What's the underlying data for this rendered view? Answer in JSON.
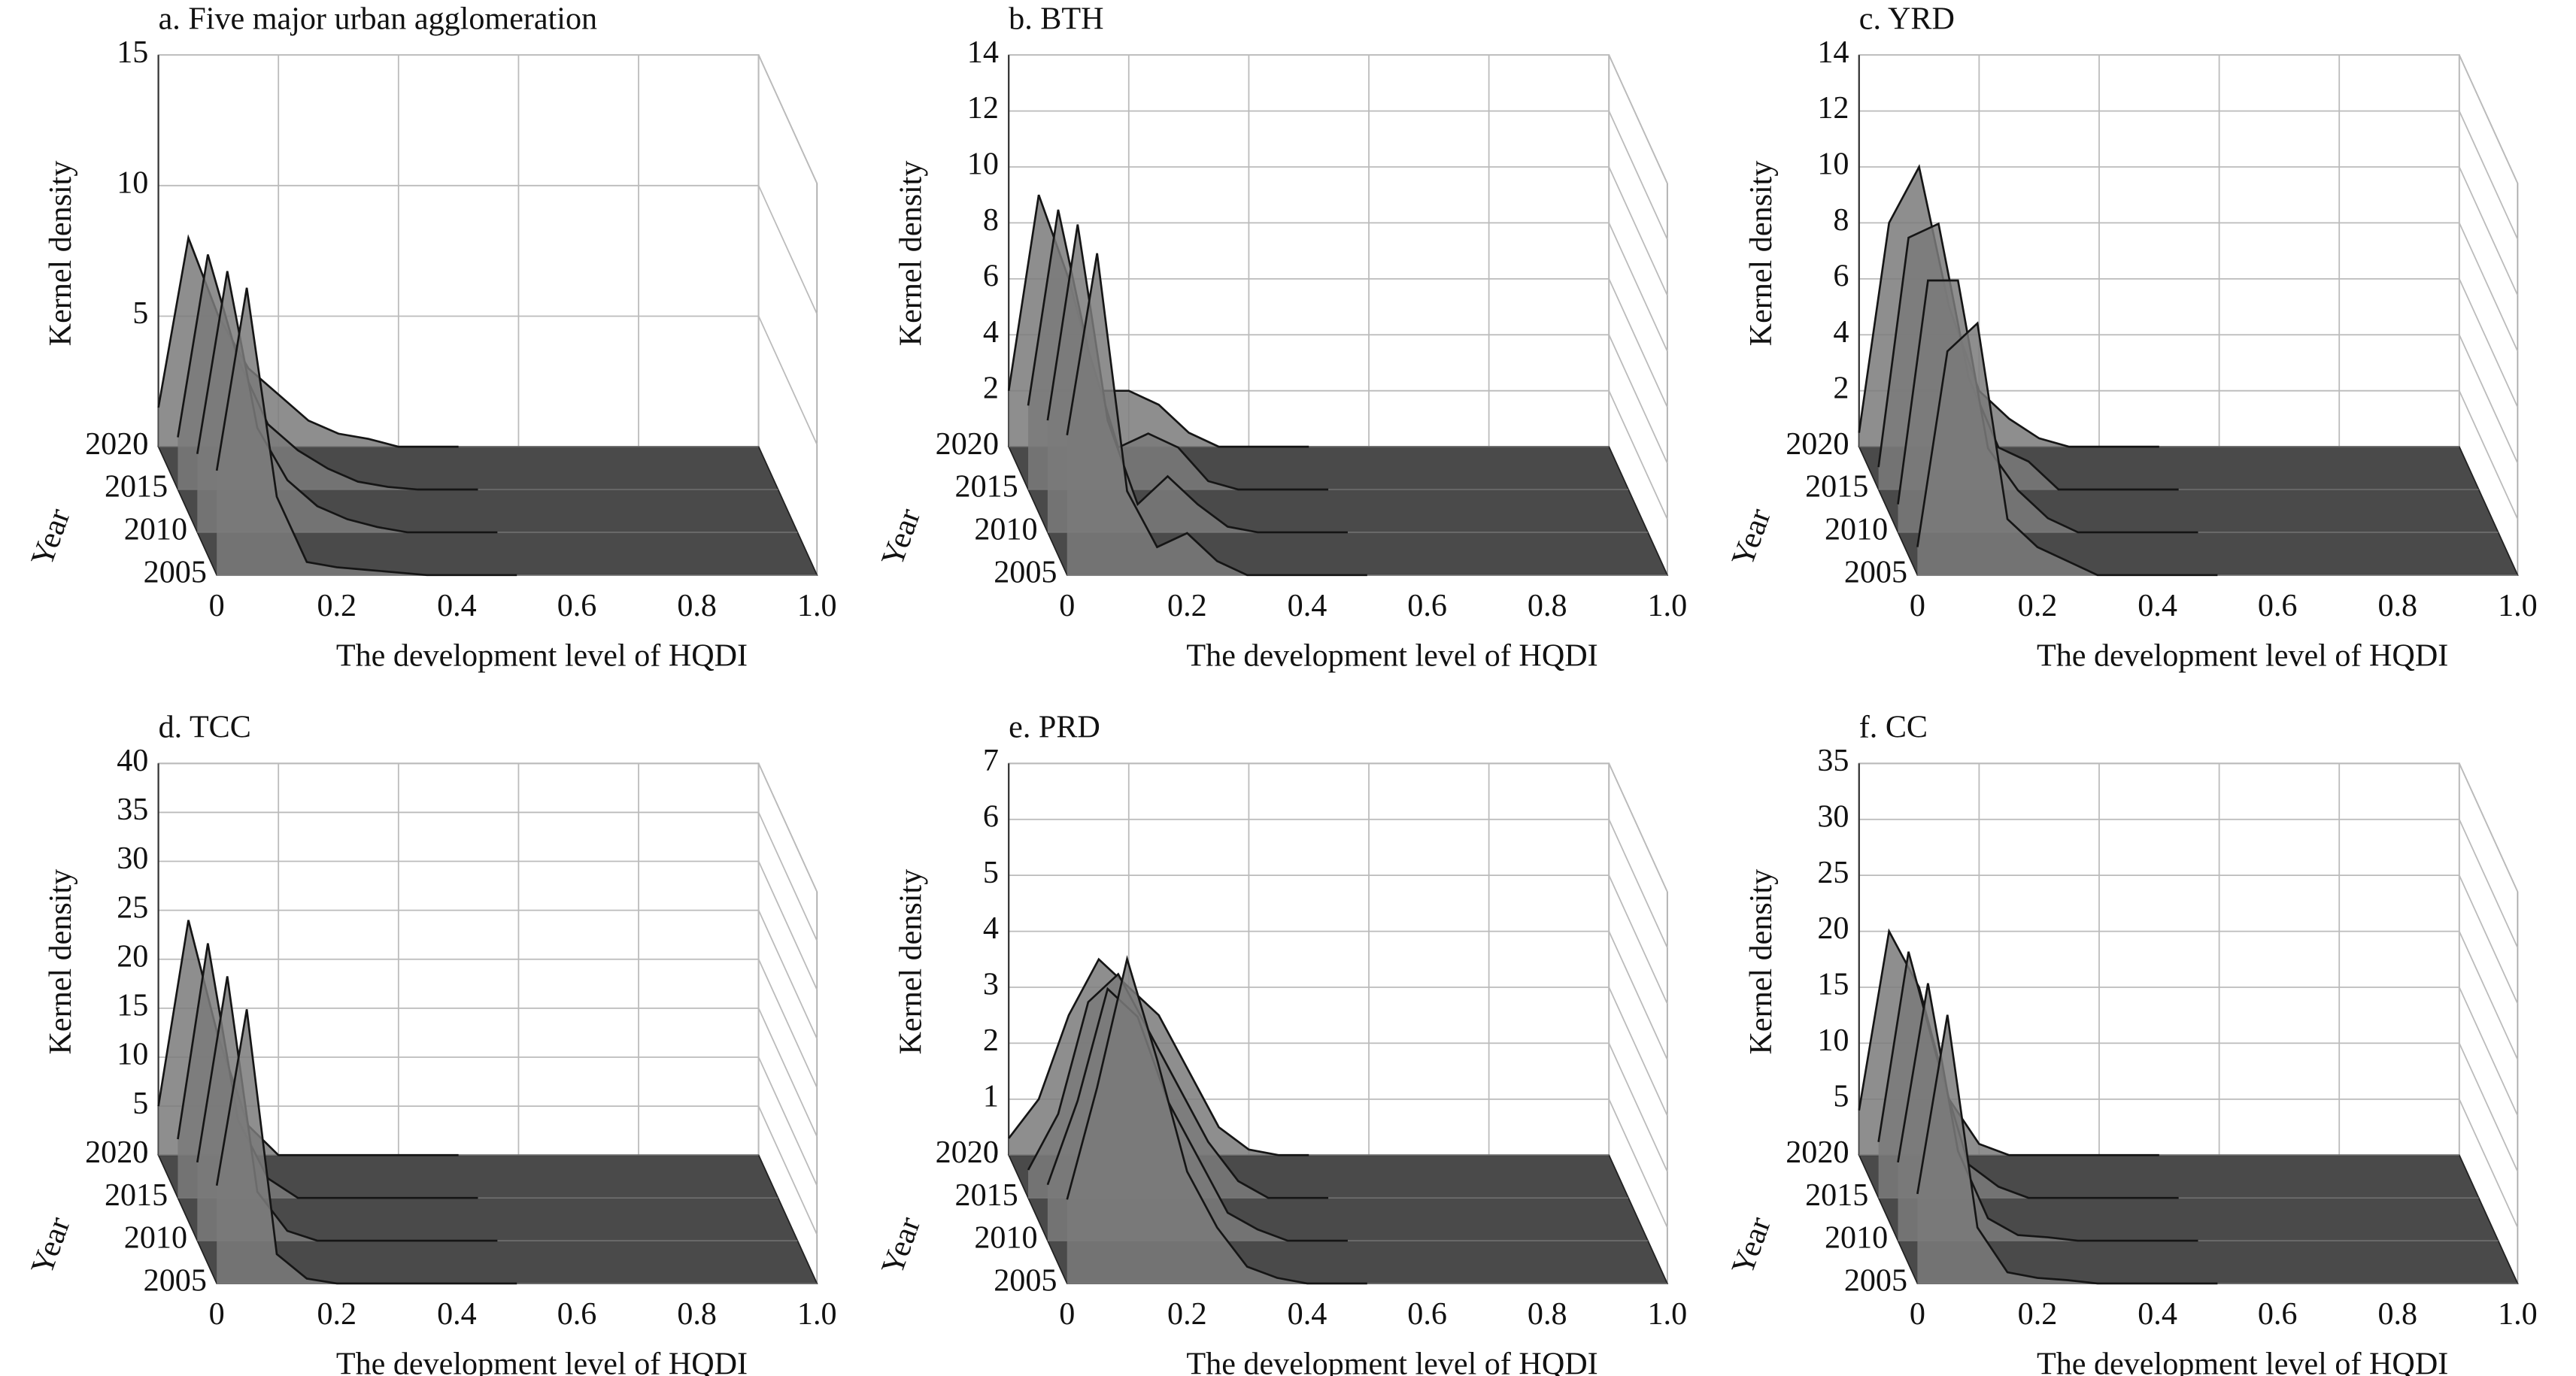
{
  "chart_data": [
    {
      "type": "surface3d",
      "title": "a. Five major urban agglomeration",
      "xlabel": "The development level of HQDI",
      "ylabel": "Year",
      "zlabel": "Kernel density",
      "x": [
        0,
        0.05,
        0.1,
        0.15,
        0.2,
        0.25,
        0.3,
        0.35,
        0.4,
        0.45,
        0.5
      ],
      "xlim": [
        0,
        1
      ],
      "xticks": [
        0,
        0.2,
        0.4,
        0.6,
        0.8,
        {
          "value": 1,
          "label": "1.0"
        }
      ],
      "ylim": [
        2005,
        2020
      ],
      "yticks": [
        2005,
        2010,
        2015,
        2020
      ],
      "zlim": [
        0,
        15
      ],
      "zticks": [
        0,
        5,
        10,
        15
      ],
      "series": [
        {
          "year": 2005,
          "color": "#151515",
          "values": [
            4,
            11,
            3,
            0.5,
            0.3,
            0.2,
            0.1,
            0,
            0,
            0,
            0
          ]
        },
        {
          "year": 2010,
          "color": "#151515",
          "values": [
            3,
            10,
            4,
            2,
            1,
            0.5,
            0.2,
            0,
            0,
            0,
            0
          ]
        },
        {
          "year": 2015,
          "color": "#151515",
          "values": [
            2,
            9,
            5,
            2.5,
            1.5,
            0.8,
            0.3,
            0.1,
            0,
            0,
            0
          ]
        },
        {
          "year": 2020,
          "color": "#151515",
          "values": [
            1.5,
            8,
            5,
            3,
            2,
            1,
            0.5,
            0.3,
            0,
            0,
            0
          ]
        }
      ]
    },
    {
      "type": "surface3d",
      "title": "b. BTH",
      "xlabel": "The development level of HQDI",
      "ylabel": "Year",
      "zlabel": "Kernel density",
      "x": [
        0,
        0.05,
        0.1,
        0.15,
        0.2,
        0.25,
        0.3,
        0.35,
        0.4,
        0.45,
        0.5
      ],
      "xlim": [
        0,
        1
      ],
      "xticks": [
        0,
        0.2,
        0.4,
        0.6,
        0.8,
        {
          "value": 1,
          "label": "1.0"
        }
      ],
      "ylim": [
        2005,
        2020
      ],
      "yticks": [
        2005,
        2010,
        2015,
        2020
      ],
      "zlim": [
        0,
        14
      ],
      "zticks": [
        0,
        2,
        4,
        6,
        8,
        10,
        12,
        14
      ],
      "series": [
        {
          "year": 2005,
          "color": "#151515",
          "values": [
            5,
            11.5,
            3,
            1,
            1.5,
            0.5,
            0,
            0,
            0,
            0,
            0
          ]
        },
        {
          "year": 2010,
          "color": "#151515",
          "values": [
            4,
            11,
            4,
            1,
            2,
            1,
            0.2,
            0,
            0,
            0,
            0
          ]
        },
        {
          "year": 2015,
          "color": "#151515",
          "values": [
            3,
            10,
            5,
            1.5,
            2,
            1.5,
            0.3,
            0,
            0,
            0,
            0
          ]
        },
        {
          "year": 2020,
          "color": "#151515",
          "values": [
            2,
            9,
            6,
            2,
            2,
            1.5,
            0.5,
            0,
            0,
            0,
            0
          ]
        }
      ]
    },
    {
      "type": "surface3d",
      "title": "c. YRD",
      "xlabel": "The development level of HQDI",
      "ylabel": "Year",
      "zlabel": "Kernel density",
      "x": [
        0,
        0.05,
        0.1,
        0.15,
        0.2,
        0.25,
        0.3,
        0.35,
        0.4,
        0.45,
        0.5
      ],
      "xlim": [
        0,
        1
      ],
      "xticks": [
        0,
        0.2,
        0.4,
        0.6,
        0.8,
        {
          "value": 1,
          "label": "1.0"
        }
      ],
      "ylim": [
        2005,
        2020
      ],
      "yticks": [
        2005,
        2010,
        2015,
        2020
      ],
      "zlim": [
        0,
        14
      ],
      "zticks": [
        0,
        2,
        4,
        6,
        8,
        10,
        12,
        14
      ],
      "series": [
        {
          "year": 2005,
          "color": "#151515",
          "values": [
            1,
            8,
            9,
            2,
            1,
            0.5,
            0,
            0,
            0,
            0,
            0
          ]
        },
        {
          "year": 2010,
          "color": "#151515",
          "values": [
            1,
            9,
            9,
            3,
            1.5,
            0.5,
            0,
            0,
            0,
            0,
            0
          ]
        },
        {
          "year": 2015,
          "color": "#151515",
          "values": [
            0.8,
            9,
            9.5,
            4,
            1.5,
            1,
            0,
            0,
            0,
            0,
            0
          ]
        },
        {
          "year": 2020,
          "color": "#151515",
          "values": [
            0.5,
            8,
            10,
            5,
            2,
            1,
            0.3,
            0,
            0,
            0,
            0
          ]
        }
      ]
    },
    {
      "type": "surface3d",
      "title": "d. TCC",
      "xlabel": "The development level of HQDI",
      "ylabel": "Year",
      "zlabel": "Kernel density",
      "x": [
        0,
        0.05,
        0.1,
        0.15,
        0.2,
        0.25,
        0.3,
        0.35,
        0.4,
        0.45,
        0.5
      ],
      "xlim": [
        0,
        1
      ],
      "xticks": [
        0,
        0.2,
        0.4,
        0.6,
        0.8,
        {
          "value": 1,
          "label": "1.0"
        }
      ],
      "ylim": [
        2005,
        2020
      ],
      "yticks": [
        2005,
        2010,
        2015,
        2020
      ],
      "zlim": [
        0,
        40
      ],
      "zticks": [
        0,
        5,
        10,
        15,
        20,
        25,
        30,
        35,
        40
      ],
      "series": [
        {
          "year": 2005,
          "color": "#151515",
          "values": [
            10,
            28,
            3,
            0.5,
            0,
            0,
            0,
            0,
            0,
            0,
            0
          ]
        },
        {
          "year": 2010,
          "color": "#151515",
          "values": [
            8,
            27,
            5,
            1,
            0,
            0,
            0,
            0,
            0,
            0,
            0
          ]
        },
        {
          "year": 2015,
          "color": "#151515",
          "values": [
            6,
            26,
            8,
            2,
            0,
            0,
            0,
            0,
            0,
            0,
            0
          ]
        },
        {
          "year": 2020,
          "color": "#151515",
          "values": [
            5,
            24,
            12,
            3,
            0,
            0,
            0,
            0,
            0,
            0,
            0
          ]
        }
      ]
    },
    {
      "type": "surface3d",
      "title": "e. PRD",
      "xlabel": "The development level of HQDI",
      "ylabel": "Year",
      "zlabel": "Kernel density",
      "x": [
        0,
        0.05,
        0.1,
        0.15,
        0.2,
        0.25,
        0.3,
        0.35,
        0.4,
        0.45,
        0.5
      ],
      "xlim": [
        0,
        1
      ],
      "xticks": [
        0,
        0.2,
        0.4,
        0.6,
        0.8,
        {
          "value": 1,
          "label": "1.0"
        }
      ],
      "ylim": [
        2005,
        2020
      ],
      "yticks": [
        2005,
        2010,
        2015,
        2020
      ],
      "zlim": [
        0,
        7
      ],
      "zticks": [
        0,
        1,
        2,
        3,
        4,
        5,
        6,
        7
      ],
      "series": [
        {
          "year": 2005,
          "color": "#151515",
          "values": [
            1.5,
            3.5,
            5.8,
            4,
            2,
            1,
            0.3,
            0.1,
            0,
            0,
            0
          ]
        },
        {
          "year": 2010,
          "color": "#151515",
          "values": [
            1,
            2.5,
            4.5,
            4,
            2.5,
            1.5,
            0.5,
            0.2,
            0,
            0,
            0
          ]
        },
        {
          "year": 2015,
          "color": "#151515",
          "values": [
            0.5,
            1.5,
            3.5,
            4,
            3,
            2,
            1,
            0.3,
            0,
            0,
            0
          ]
        },
        {
          "year": 2020,
          "color": "#151515",
          "values": [
            0.3,
            1,
            2.5,
            3.5,
            3,
            2.5,
            1.5,
            0.5,
            0.1,
            0,
            0
          ]
        }
      ]
    },
    {
      "type": "surface3d",
      "title": "f. CC",
      "xlabel": "The development level of HQDI",
      "ylabel": "Year",
      "zlabel": "Kernel density",
      "x": [
        0,
        0.05,
        0.1,
        0.15,
        0.2,
        0.25,
        0.3,
        0.35,
        0.4,
        0.45,
        0.5
      ],
      "xlim": [
        0,
        1
      ],
      "xticks": [
        0,
        0.2,
        0.4,
        0.6,
        0.8,
        {
          "value": 1,
          "label": "1.0"
        }
      ],
      "ylim": [
        2005,
        2020
      ],
      "yticks": [
        2005,
        2010,
        2015,
        2020
      ],
      "zlim": [
        0,
        35
      ],
      "zticks": [
        0,
        5,
        10,
        15,
        20,
        25,
        30,
        35
      ],
      "series": [
        {
          "year": 2005,
          "color": "#151515",
          "values": [
            8,
            24,
            5,
            1,
            0.5,
            0.3,
            0,
            0,
            0,
            0,
            0
          ]
        },
        {
          "year": 2010,
          "color": "#151515",
          "values": [
            7,
            23,
            8,
            2,
            0.5,
            0.3,
            0,
            0,
            0,
            0,
            0
          ]
        },
        {
          "year": 2015,
          "color": "#151515",
          "values": [
            5,
            22,
            12,
            3,
            1,
            0,
            0,
            0,
            0,
            0,
            0
          ]
        },
        {
          "year": 2020,
          "color": "#151515",
          "values": [
            4,
            20,
            15,
            5,
            1,
            0,
            0,
            0,
            0,
            0,
            0
          ]
        }
      ]
    }
  ]
}
